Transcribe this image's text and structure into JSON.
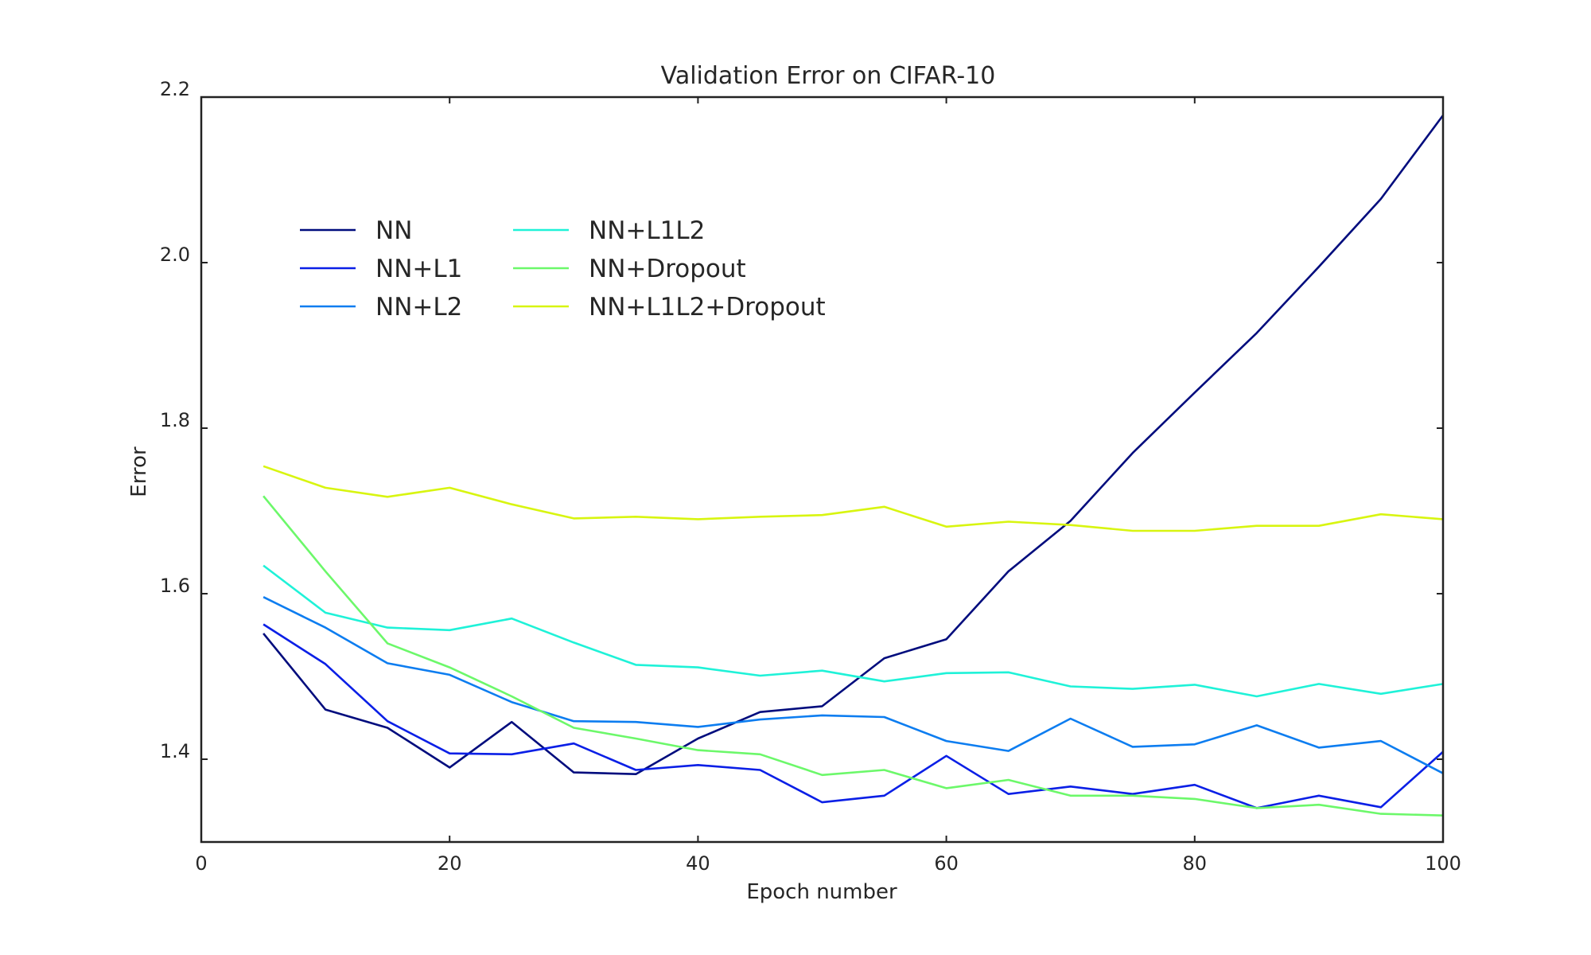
{
  "chart_data": {
    "type": "line",
    "title": "Validation Error on CIFAR-10",
    "xlabel": "Epoch number",
    "ylabel": "Error",
    "xlim": [
      0,
      100
    ],
    "ylim": [
      1.3,
      2.2
    ],
    "xticks": [
      "0",
      "20",
      "40",
      "60",
      "80",
      "100"
    ],
    "yticks": [
      "1.4",
      "1.6",
      "1.8",
      "2.0",
      "2.2"
    ],
    "grid": false,
    "legend": "upper-left, two columns",
    "x": [
      5,
      10,
      15,
      20,
      25,
      30,
      35,
      40,
      45,
      50,
      55,
      60,
      65,
      70,
      75,
      80,
      85,
      90,
      95,
      100
    ],
    "series": [
      {
        "name": "NN",
        "color": "#000c7d",
        "values": [
          1.552,
          1.46,
          1.438,
          1.39,
          1.445,
          1.384,
          1.382,
          1.425,
          1.457,
          1.464,
          1.522,
          1.545,
          1.627,
          1.688,
          1.77,
          1.843,
          1.915,
          1.995,
          2.077,
          2.178
        ]
      },
      {
        "name": "NN+L1",
        "color": "#0a1fe6",
        "values": [
          1.563,
          1.515,
          1.446,
          1.407,
          1.406,
          1.419,
          1.387,
          1.393,
          1.387,
          1.348,
          1.356,
          1.404,
          1.358,
          1.367,
          1.358,
          1.369,
          1.341,
          1.356,
          1.342,
          1.409
        ]
      },
      {
        "name": "NN+L2",
        "color": "#0d7df0",
        "values": [
          1.596,
          1.559,
          1.516,
          1.502,
          1.469,
          1.446,
          1.445,
          1.439,
          1.448,
          1.453,
          1.451,
          1.422,
          1.41,
          1.449,
          1.415,
          1.418,
          1.441,
          1.414,
          1.422,
          1.383
        ]
      },
      {
        "name": "NN+L1L2",
        "color": "#1ff2d8",
        "values": [
          1.634,
          1.577,
          1.559,
          1.556,
          1.57,
          1.541,
          1.514,
          1.511,
          1.501,
          1.507,
          1.494,
          1.504,
          1.505,
          1.488,
          1.485,
          1.49,
          1.476,
          1.491,
          1.479,
          1.491
        ]
      },
      {
        "name": "NN+Dropout",
        "color": "#6cf86a",
        "values": [
          1.718,
          1.627,
          1.54,
          1.511,
          1.476,
          1.438,
          1.425,
          1.411,
          1.406,
          1.381,
          1.387,
          1.365,
          1.375,
          1.356,
          1.356,
          1.352,
          1.341,
          1.345,
          1.334,
          1.332
        ]
      },
      {
        "name": "NN+L1L2+Dropout",
        "color": "#d8f510",
        "values": [
          1.754,
          1.728,
          1.717,
          1.728,
          1.708,
          1.691,
          1.693,
          1.69,
          1.693,
          1.695,
          1.705,
          1.681,
          1.687,
          1.683,
          1.676,
          1.676,
          1.682,
          1.682,
          1.696,
          1.69
        ]
      }
    ]
  }
}
